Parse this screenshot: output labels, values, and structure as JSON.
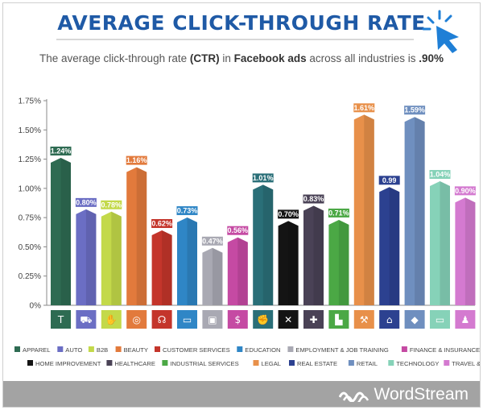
{
  "header": {
    "title": "AVERAGE CLICK-THROUGH RATE",
    "subtitle_pre": "The average click-through rate ",
    "subtitle_b1": "(CTR)",
    "subtitle_mid": " in ",
    "subtitle_b2": "Facebook ads",
    "subtitle_post": " across all industries is ",
    "subtitle_b3": ".90%"
  },
  "brand": {
    "name": "WordStream",
    "icon": "wordstream-wave-icon"
  },
  "colors": {
    "title": "#1f5aa6",
    "footer": "#a3a3a3"
  },
  "chart_data": {
    "type": "bar",
    "title": "AVERAGE CLICK-THROUGH RATE",
    "xlabel": "",
    "ylabel": "",
    "ylim": [
      0,
      1.75
    ],
    "yticks": [
      0,
      0.25,
      0.5,
      0.75,
      1.0,
      1.25,
      1.5,
      1.75
    ],
    "ytick_labels": [
      "0%",
      "0.25%",
      "0.50%",
      "0.75%",
      "1.00%",
      "1.25%",
      "1.50%",
      "1.75%"
    ],
    "grid": false,
    "legend_position": "bottom",
    "categories": [
      "APPAREL",
      "AUTO",
      "B2B",
      "BEAUTY",
      "CUSTOMER SERVICES",
      "EDUCATION",
      "EMPLOYMENT & JOB TRAINING",
      "FINANCE & INSURANCE",
      "FITNESS",
      "HOME IMPROVEMENT",
      "HEALTHCARE",
      "INDUSTRIAL SERVICES",
      "LEGAL",
      "REAL ESTATE",
      "RETAIL",
      "TECHNOLOGY",
      "TRAVEL & HOSPITALITY"
    ],
    "values": [
      1.24,
      0.8,
      0.78,
      1.16,
      0.62,
      0.73,
      0.47,
      0.56,
      1.01,
      0.7,
      0.83,
      0.71,
      1.61,
      0.99,
      1.59,
      1.04,
      0.9
    ],
    "value_labels": [
      "1.24%",
      "0.80%",
      "0.78%",
      "1.16%",
      "0.62%",
      "0.73%",
      "0.47%",
      "0.56%",
      "1.01%",
      "0.70%",
      "0.83%",
      "0.71%",
      "1.61%",
      "0.99",
      "1.59%",
      "1.04%",
      "0.90%"
    ],
    "colors": [
      "#2e6b52",
      "#6b6ec4",
      "#c3d94a",
      "#e27a3c",
      "#c4352b",
      "#2f86c6",
      "#a9a9b3",
      "#c54aa3",
      "#2a6f78",
      "#141414",
      "#4a4256",
      "#4ba845",
      "#e8904a",
      "#2c4190",
      "#6f8fbf",
      "#86d2b8",
      "#d47ad0"
    ],
    "icons": [
      "shirt-icon",
      "car-icon",
      "handshake-icon",
      "mirror-icon",
      "headset-icon",
      "book-icon",
      "briefcase-icon",
      "money-bag-icon",
      "bicep-icon",
      "tools-icon",
      "medical-kit-icon",
      "factory-icon",
      "gavel-icon",
      "house-icon",
      "price-tag-icon",
      "laptop-icon",
      "suitcase-icon"
    ]
  }
}
